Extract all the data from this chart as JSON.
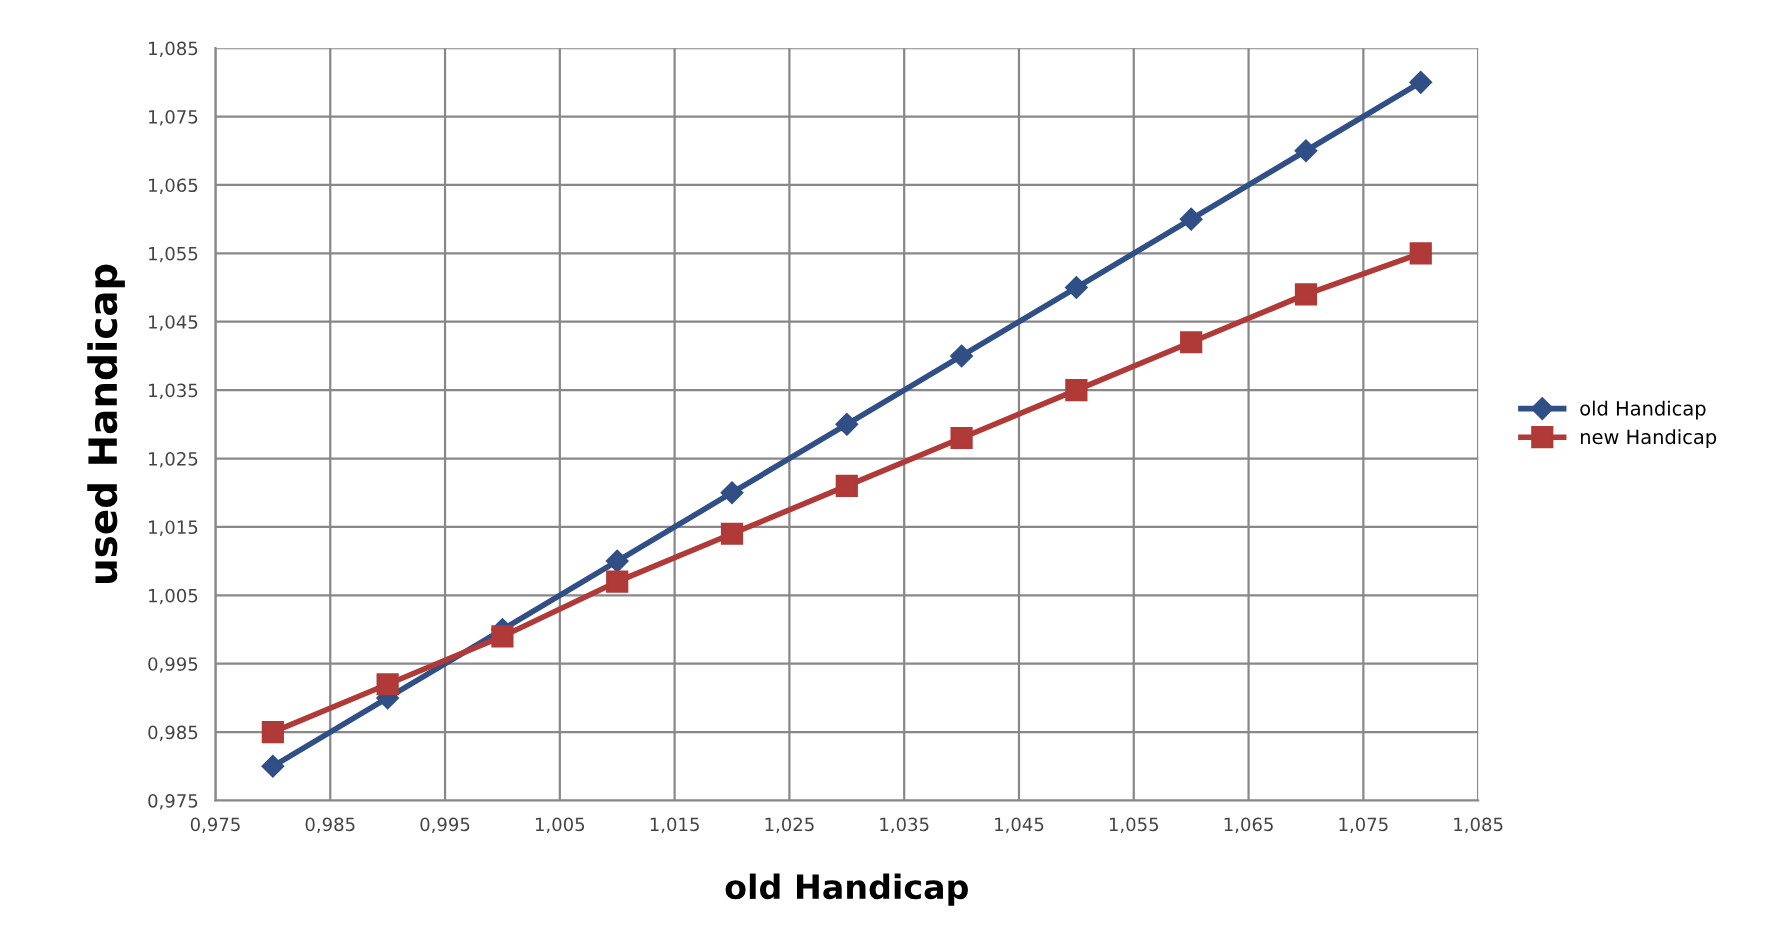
{
  "chart_data": {
    "type": "line",
    "xlabel": "old Handicap",
    "ylabel": "used Handicap",
    "x": [
      0.98,
      0.99,
      1.0,
      1.01,
      1.02,
      1.03,
      1.04,
      1.05,
      1.06,
      1.07,
      1.08
    ],
    "series": [
      {
        "name": "old Handicap",
        "color": "#2f4f86",
        "marker": "diamond",
        "values": [
          0.98,
          0.99,
          1.0,
          1.01,
          1.02,
          1.03,
          1.04,
          1.05,
          1.06,
          1.07,
          1.08
        ]
      },
      {
        "name": "new Handicap",
        "color": "#b03a37",
        "marker": "square",
        "values": [
          0.985,
          0.992,
          0.999,
          1.007,
          1.014,
          1.021,
          1.028,
          1.035,
          1.042,
          1.049,
          1.055
        ]
      }
    ],
    "xlim": [
      0.975,
      1.085
    ],
    "ylim": [
      0.975,
      1.085
    ],
    "xticks": [
      {
        "value": 0.975,
        "label": "0,975"
      },
      {
        "value": 0.985,
        "label": "0,985"
      },
      {
        "value": 0.995,
        "label": "0,995"
      },
      {
        "value": 1.005,
        "label": "1,005"
      },
      {
        "value": 1.015,
        "label": "1,015"
      },
      {
        "value": 1.025,
        "label": "1,025"
      },
      {
        "value": 1.035,
        "label": "1,035"
      },
      {
        "value": 1.045,
        "label": "1,045"
      },
      {
        "value": 1.055,
        "label": "1,055"
      },
      {
        "value": 1.065,
        "label": "1,065"
      },
      {
        "value": 1.075,
        "label": "1,075"
      },
      {
        "value": 1.085,
        "label": "1,085"
      }
    ],
    "yticks": [
      {
        "value": 0.975,
        "label": "0,975"
      },
      {
        "value": 0.985,
        "label": "0,985"
      },
      {
        "value": 0.995,
        "label": "0,995"
      },
      {
        "value": 1.005,
        "label": "1,005"
      },
      {
        "value": 1.015,
        "label": "1,015"
      },
      {
        "value": 1.025,
        "label": "1,025"
      },
      {
        "value": 1.035,
        "label": "1,035"
      },
      {
        "value": 1.045,
        "label": "1,045"
      },
      {
        "value": 1.055,
        "label": "1,055"
      },
      {
        "value": 1.065,
        "label": "1,065"
      },
      {
        "value": 1.075,
        "label": "1,075"
      },
      {
        "value": 1.085,
        "label": "1,085"
      }
    ],
    "grid": true,
    "legend": "right",
    "line_style": "solid"
  }
}
